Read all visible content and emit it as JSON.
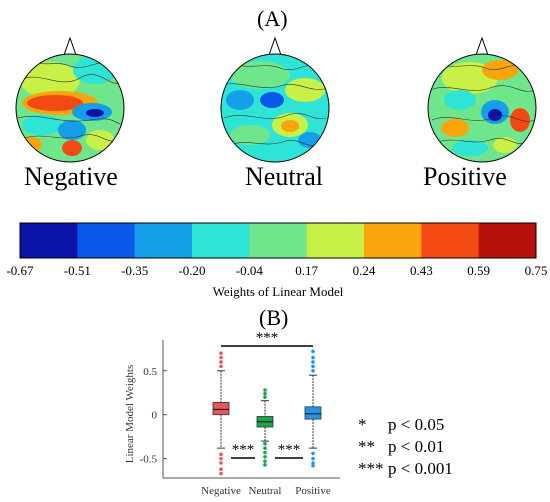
{
  "panel_a": {
    "label": "(A)",
    "conditions": [
      {
        "name": "Negative",
        "head": "negative"
      },
      {
        "name": "Neutral",
        "head": "neutral"
      },
      {
        "name": "Positive",
        "head": "positive"
      }
    ]
  },
  "colorbar": {
    "title": "Weights of Linear Model",
    "ticks": [
      "-0.67",
      "-0.51",
      "-0.35",
      "-0.20",
      "-0.04",
      "0.17",
      "0.24",
      "0.43",
      "0.59",
      "0.75"
    ],
    "colors": [
      "#0a12a8",
      "#0b57e8",
      "#159fe8",
      "#2ee4d6",
      "#6fe58c",
      "#c9f046",
      "#f7a50a",
      "#f24a12",
      "#b8110c"
    ]
  },
  "panel_b": {
    "label": "(B)"
  },
  "chart_data": {
    "type": "box",
    "title": "",
    "ylabel": "Linear Model Weights",
    "categories": [
      "Negative",
      "Neutral",
      "Positive"
    ],
    "ylim": [
      -0.72,
      0.85
    ],
    "yticks": [
      0.5,
      0,
      -0.5
    ],
    "ytick_labels": [
      "0.5",
      "0",
      "-0.5"
    ],
    "colors": [
      "#e8565f",
      "#14a84a",
      "#2196e8"
    ],
    "boxes": [
      {
        "name": "Negative",
        "whisker_low": -0.38,
        "q1": 0.0,
        "median": 0.06,
        "q3": 0.14,
        "whisker_high": 0.5,
        "outliers": [
          0.55,
          0.6,
          0.65,
          0.7,
          -0.45,
          -0.5,
          -0.55,
          -0.62,
          -0.67
        ]
      },
      {
        "name": "Neutral",
        "whisker_low": -0.3,
        "q1": -0.14,
        "median": -0.08,
        "q3": -0.02,
        "whisker_high": 0.16,
        "outliers": [
          0.2,
          0.24,
          0.28,
          -0.33,
          -0.38,
          -0.43,
          -0.48,
          -0.53,
          -0.57
        ]
      },
      {
        "name": "Positive",
        "whisker_low": -0.38,
        "q1": -0.05,
        "median": 0.01,
        "q3": 0.09,
        "whisker_high": 0.45,
        "outliers": [
          0.5,
          0.55,
          0.6,
          0.65,
          0.72,
          -0.44,
          -0.5,
          -0.55,
          -0.58
        ]
      }
    ],
    "significance_bars": [
      {
        "from": "Negative",
        "to": "Positive",
        "label": "***",
        "position": "top"
      },
      {
        "from": "Negative",
        "to": "Neutral",
        "label": "***",
        "position": "bottom"
      },
      {
        "from": "Neutral",
        "to": "Positive",
        "label": "***",
        "position": "bottom"
      }
    ]
  },
  "significance_legend": [
    {
      "stars": "*",
      "text": "p < 0.05"
    },
    {
      "stars": "**",
      "text": "p < 0.01"
    },
    {
      "stars": "***",
      "text": "p < 0.001"
    }
  ]
}
